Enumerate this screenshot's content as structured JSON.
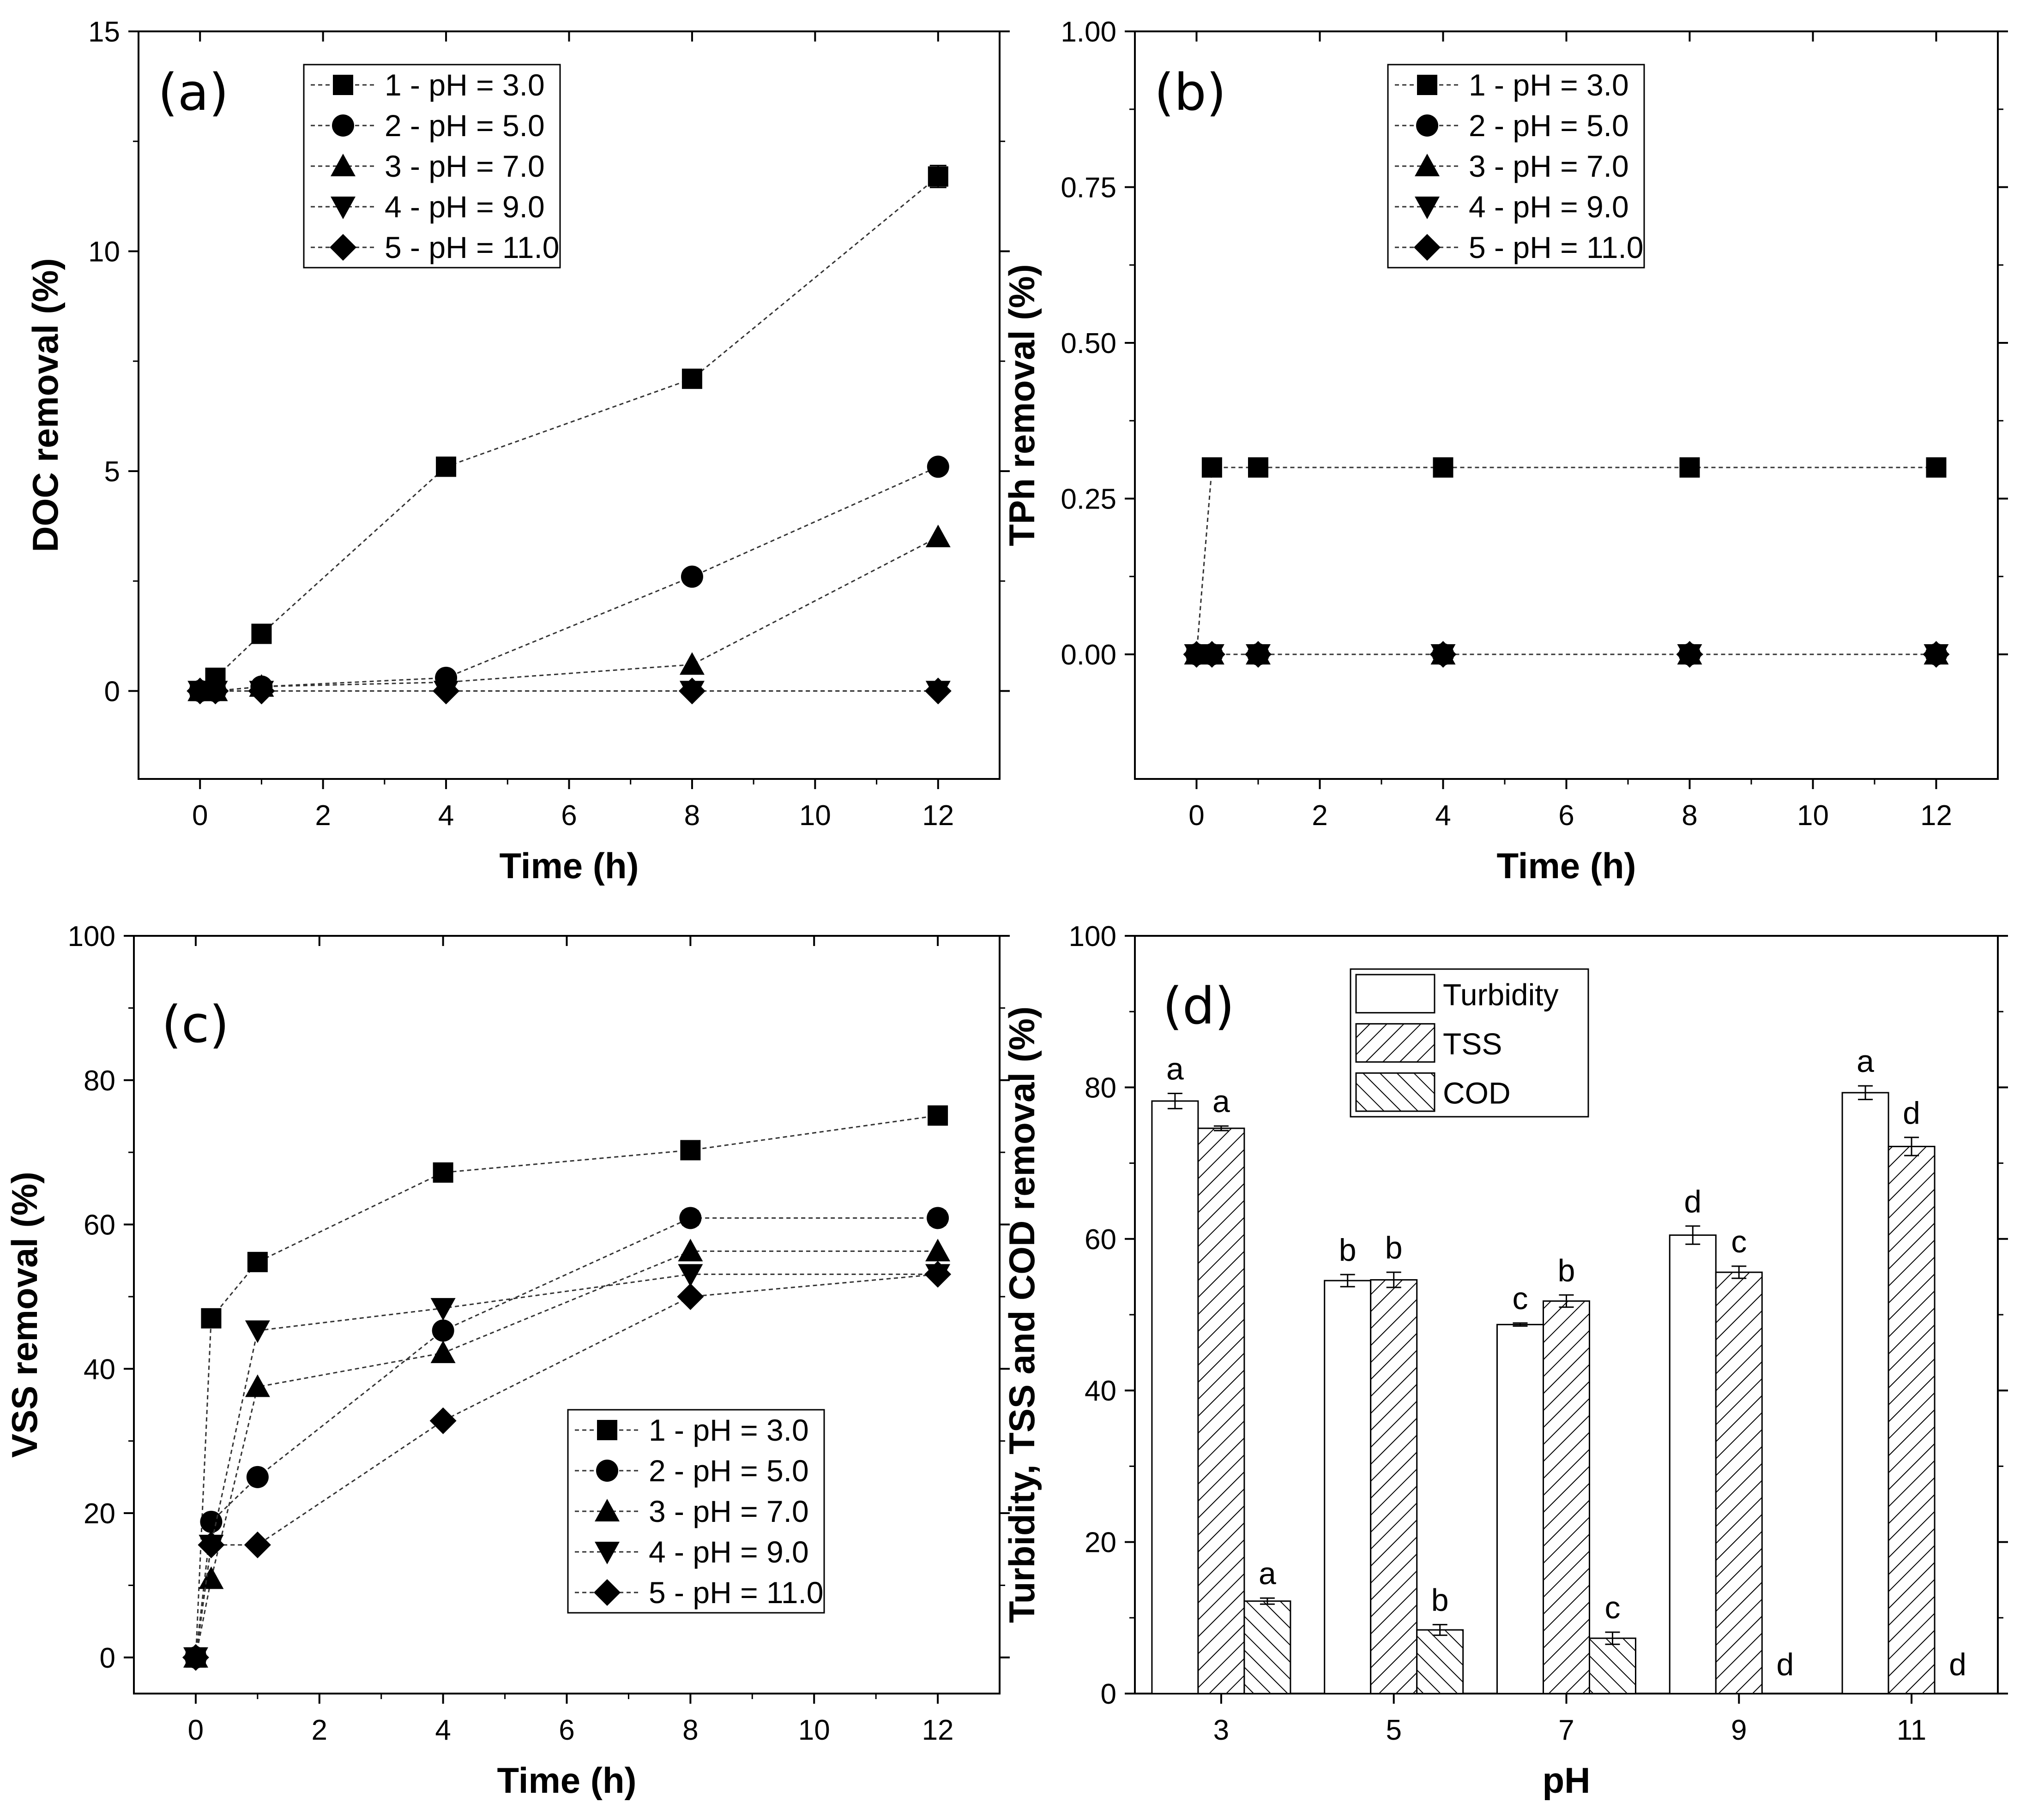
{
  "chart_data": [
    {
      "id": "a",
      "panel_label": "(a)",
      "type": "line",
      "xlabel": "Time (h)",
      "ylabel": "DOC removal (%)",
      "xlim": [
        -1,
        13
      ],
      "ylim": [
        -2,
        15
      ],
      "xticks": [
        0,
        2,
        4,
        6,
        8,
        10,
        12
      ],
      "yticks": [
        0,
        5,
        10,
        15
      ],
      "legend_position": "top-left",
      "series": [
        {
          "name": "1 - pH = 3.0",
          "marker": "square",
          "x": [
            0,
            0.25,
            1,
            4,
            8,
            12
          ],
          "y": [
            0,
            0.3,
            1.3,
            5.1,
            7.1,
            11.7
          ],
          "err": [
            0,
            0,
            0,
            0,
            0,
            0.25
          ]
        },
        {
          "name": "2 - pH = 5.0",
          "marker": "circle",
          "x": [
            0,
            0.25,
            1,
            4,
            8,
            12
          ],
          "y": [
            0,
            0,
            0.1,
            0.3,
            2.6,
            5.1
          ],
          "err": [
            0,
            0,
            0,
            0,
            0,
            0
          ]
        },
        {
          "name": "3 - pH = 7.0",
          "marker": "triangle-up",
          "x": [
            0,
            0.25,
            1,
            4,
            8,
            12
          ],
          "y": [
            0,
            0,
            0.1,
            0.2,
            0.6,
            3.5
          ],
          "err": [
            0,
            0,
            0,
            0,
            0,
            0
          ]
        },
        {
          "name": "4 - pH = 9.0",
          "marker": "triangle-down",
          "x": [
            0,
            0.25,
            1,
            4,
            8,
            12
          ],
          "y": [
            0,
            0,
            0,
            0,
            0,
            0
          ],
          "err": [
            0,
            0,
            0,
            0,
            0,
            0
          ]
        },
        {
          "name": "5 - pH = 11.0",
          "marker": "diamond",
          "x": [
            0,
            0.25,
            1,
            4,
            8,
            12
          ],
          "y": [
            0,
            0,
            0,
            0,
            0,
            0
          ],
          "err": [
            0,
            0,
            0,
            0,
            0,
            0
          ]
        }
      ]
    },
    {
      "id": "b",
      "panel_label": "(b)",
      "type": "line",
      "xlabel": "Time (h)",
      "ylabel": "TPh removal (%)",
      "xlim": [
        -1,
        13
      ],
      "ylim": [
        -0.2,
        1.0
      ],
      "xticks": [
        0,
        2,
        4,
        6,
        8,
        10,
        12
      ],
      "yticks": [
        "0.00",
        "0.25",
        "0.50",
        "0.75",
        "1.00"
      ],
      "legend_position": "top-left",
      "series": [
        {
          "name": "1 - pH = 3.0",
          "marker": "square",
          "x": [
            0,
            0.25,
            1,
            4,
            8,
            12
          ],
          "y": [
            0,
            0.3,
            0.3,
            0.3,
            0.3,
            0.3
          ],
          "err": [
            0,
            0,
            0,
            0,
            0,
            0
          ]
        },
        {
          "name": "2 - pH = 5.0",
          "marker": "circle",
          "x": [
            0,
            0.25,
            1,
            4,
            8,
            12
          ],
          "y": [
            0,
            0,
            0,
            0,
            0,
            0
          ],
          "err": [
            0,
            0,
            0,
            0,
            0,
            0
          ]
        },
        {
          "name": "3 - pH = 7.0",
          "marker": "triangle-up",
          "x": [
            0,
            0.25,
            1,
            4,
            8,
            12
          ],
          "y": [
            0,
            0,
            0,
            0,
            0,
            0
          ],
          "err": [
            0,
            0,
            0,
            0,
            0,
            0
          ]
        },
        {
          "name": "4 - pH = 9.0",
          "marker": "triangle-down",
          "x": [
            0,
            0.25,
            1,
            4,
            8,
            12
          ],
          "y": [
            0,
            0,
            0,
            0,
            0,
            0
          ],
          "err": [
            0,
            0,
            0,
            0,
            0,
            0
          ]
        },
        {
          "name": "5 - pH = 11.0",
          "marker": "diamond",
          "x": [
            0,
            0.25,
            1,
            4,
            8,
            12
          ],
          "y": [
            0,
            0,
            0,
            0,
            0,
            0
          ],
          "err": [
            0,
            0,
            0,
            0,
            0,
            0
          ]
        }
      ]
    },
    {
      "id": "c",
      "panel_label": "(c)",
      "type": "line",
      "xlabel": "Time (h)",
      "ylabel": "VSS removal (%)",
      "xlim": [
        -1,
        13
      ],
      "ylim": [
        -5,
        100
      ],
      "xticks": [
        0,
        2,
        4,
        6,
        8,
        10,
        12
      ],
      "yticks": [
        0,
        20,
        40,
        60,
        80,
        100
      ],
      "legend_position": "bottom-right",
      "series": [
        {
          "name": "1 - pH = 3.0",
          "marker": "square",
          "x": [
            0,
            0.25,
            1,
            4,
            8,
            12
          ],
          "y": [
            0,
            47,
            54.8,
            67.2,
            70.3,
            75.1
          ],
          "err": [
            0,
            0,
            0,
            1.0,
            1.0,
            1.3
          ]
        },
        {
          "name": "2 - pH = 5.0",
          "marker": "circle",
          "x": [
            0,
            0.25,
            1,
            4,
            8,
            12
          ],
          "y": [
            0,
            18.8,
            25,
            45.3,
            60.9,
            60.9
          ],
          "err": [
            0,
            0,
            0,
            0.8,
            1.0,
            1.0
          ]
        },
        {
          "name": "3 - pH = 7.0",
          "marker": "triangle-up",
          "x": [
            0,
            0.25,
            1,
            4,
            8,
            12
          ],
          "y": [
            0,
            10.9,
            37.5,
            42.2,
            56.3,
            56.3
          ],
          "err": [
            0,
            0,
            0,
            0,
            0,
            0
          ]
        },
        {
          "name": "4 - pH = 9.0",
          "marker": "triangle-down",
          "x": [
            0,
            0.25,
            1,
            4,
            8,
            12
          ],
          "y": [
            0,
            15.6,
            45.3,
            48.4,
            53.1,
            53.1
          ],
          "err": [
            0,
            0,
            0,
            0,
            0,
            0
          ]
        },
        {
          "name": "5 - pH = 11.0",
          "marker": "diamond",
          "x": [
            0,
            0.25,
            1,
            4,
            8,
            12
          ],
          "y": [
            0,
            15.6,
            15.6,
            32.8,
            50,
            53.1
          ],
          "err": [
            0,
            0,
            0,
            0,
            0,
            0
          ]
        }
      ]
    },
    {
      "id": "d",
      "panel_label": "(d)",
      "type": "bar",
      "xlabel": "pH",
      "ylabel": "Turbidity, TSS and COD removal (%)",
      "ylim": [
        0,
        100
      ],
      "yticks": [
        0,
        20,
        40,
        60,
        80,
        100
      ],
      "categories": [
        "3",
        "5",
        "7",
        "9",
        "11"
      ],
      "legend_position": "top-left",
      "series": [
        {
          "name": "Turbidity",
          "pattern": "none",
          "values": [
            78.2,
            54.5,
            48.7,
            60.5,
            79.3
          ],
          "err": [
            1.0,
            0.8,
            0.2,
            1.2,
            0.9
          ],
          "letters": [
            "a",
            "b",
            "c",
            "d",
            "a"
          ]
        },
        {
          "name": "TSS",
          "pattern": "diagonal-up",
          "values": [
            74.6,
            54.6,
            51.8,
            55.6,
            72.2
          ],
          "err": [
            0.3,
            1.0,
            0.8,
            0.8,
            1.2
          ],
          "letters": [
            "a",
            "b",
            "b",
            "c",
            "d"
          ]
        },
        {
          "name": "COD",
          "pattern": "diagonal-down",
          "values": [
            12.2,
            8.4,
            7.3,
            0,
            0
          ],
          "err": [
            0.4,
            0.7,
            0.8,
            0,
            0
          ],
          "letters": [
            "a",
            "b",
            "c",
            "d",
            "d"
          ]
        }
      ]
    }
  ]
}
